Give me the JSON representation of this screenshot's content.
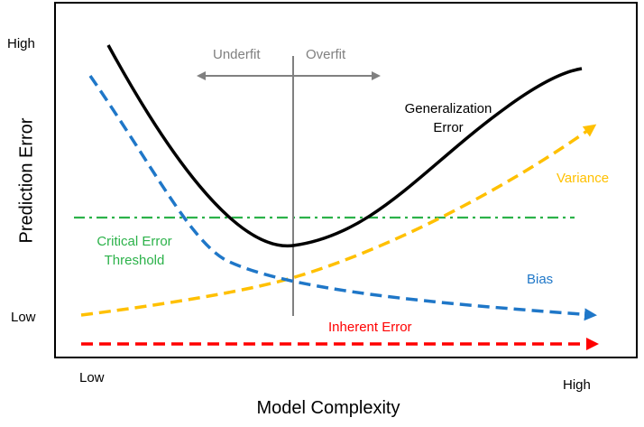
{
  "axes": {
    "y_title": "Prediction Error",
    "x_title": "Model Complexity",
    "y_high": "High",
    "y_low": "Low",
    "x_low": "Low",
    "x_high": "High"
  },
  "regions": {
    "underfit": "Underfit",
    "overfit": "Overfit"
  },
  "curves": {
    "generalization_line1": "Generalization",
    "generalization_line2": "Error",
    "variance": "Variance",
    "bias": "Bias",
    "threshold_line1": "Critical Error",
    "threshold_line2": "Threshold",
    "inherent": "Inherent Error"
  },
  "colors": {
    "generalization": "#000000",
    "variance": "#FFC000",
    "bias": "#1F77C8",
    "threshold": "#2CB24A",
    "inherent": "#FF0000",
    "divider": "#808080"
  }
}
